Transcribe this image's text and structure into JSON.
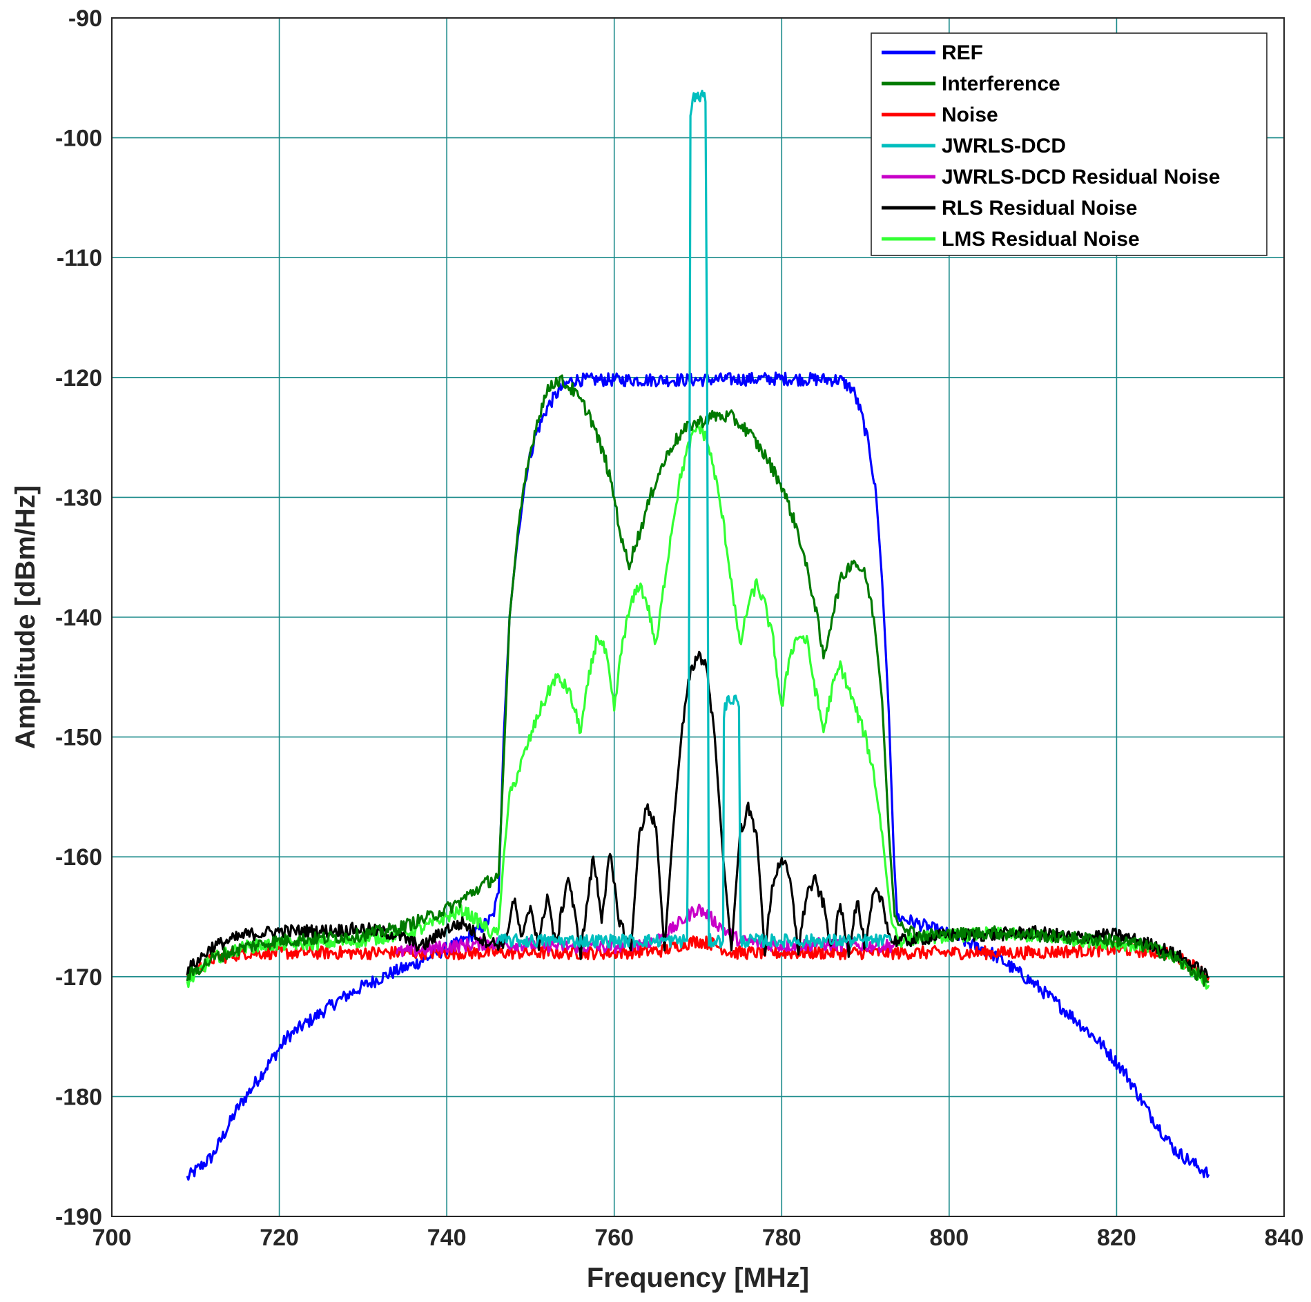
{
  "chart_data": {
    "type": "line",
    "title": "",
    "xlabel": "Frequency [MHz]",
    "ylabel": "Amplitude [dBm/Hz]",
    "xlim": [
      700,
      840
    ],
    "ylim": [
      -190,
      -90
    ],
    "xticks": [
      700,
      720,
      740,
      760,
      780,
      800,
      820,
      840
    ],
    "yticks": [
      -90,
      -100,
      -110,
      -120,
      -130,
      -140,
      -150,
      -160,
      -170,
      -180,
      -190
    ],
    "grid": true,
    "legend_position": "top-right",
    "series": [
      {
        "name": "REF",
        "color": "#0000ff",
        "points": [
          [
            709,
            -186.8
          ],
          [
            712,
            -185
          ],
          [
            715,
            -181
          ],
          [
            718,
            -178
          ],
          [
            721,
            -175
          ],
          [
            724,
            -173.5
          ],
          [
            727,
            -172
          ],
          [
            730,
            -170.8
          ],
          [
            733,
            -169.8
          ],
          [
            736,
            -169
          ],
          [
            739,
            -168
          ],
          [
            742,
            -167
          ],
          [
            744,
            -166
          ],
          [
            745.5,
            -165
          ],
          [
            746.2,
            -163
          ],
          [
            746.8,
            -150
          ],
          [
            747.5,
            -140
          ],
          [
            748.5,
            -133
          ],
          [
            749.5,
            -128
          ],
          [
            750.5,
            -125
          ],
          [
            752,
            -122.5
          ],
          [
            753.5,
            -121
          ],
          [
            755,
            -120.2
          ],
          [
            760,
            -120.2
          ],
          [
            770,
            -120.2
          ],
          [
            780,
            -120.1
          ],
          [
            787,
            -120.2
          ],
          [
            788.5,
            -121
          ],
          [
            789.5,
            -123
          ],
          [
            790.5,
            -126
          ],
          [
            791.3,
            -130
          ],
          [
            792,
            -137
          ],
          [
            792.8,
            -148
          ],
          [
            793.4,
            -160
          ],
          [
            793.8,
            -165
          ],
          [
            796,
            -165.5
          ],
          [
            800,
            -166.5
          ],
          [
            805,
            -168
          ],
          [
            810,
            -170.5
          ],
          [
            815,
            -173.5
          ],
          [
            818,
            -175.5
          ],
          [
            821,
            -178
          ],
          [
            824,
            -181.5
          ],
          [
            827,
            -184.5
          ],
          [
            830,
            -186
          ],
          [
            831,
            -186.5
          ]
        ]
      },
      {
        "name": "Interference",
        "color": "#007a00",
        "points": [
          [
            709,
            -170
          ],
          [
            712,
            -168.5
          ],
          [
            716,
            -167.5
          ],
          [
            720,
            -167
          ],
          [
            725,
            -166.8
          ],
          [
            730,
            -166.5
          ],
          [
            734,
            -166
          ],
          [
            738,
            -165
          ],
          [
            741,
            -164
          ],
          [
            744,
            -162.5
          ],
          [
            746.2,
            -161.5
          ],
          [
            746.8,
            -152
          ],
          [
            747.5,
            -140
          ],
          [
            748.5,
            -133
          ],
          [
            749.5,
            -128
          ],
          [
            750.5,
            -124.5
          ],
          [
            751.5,
            -122
          ],
          [
            752.5,
            -120.5
          ],
          [
            753.5,
            -120.2
          ],
          [
            755,
            -121
          ],
          [
            757,
            -123
          ],
          [
            759,
            -127
          ],
          [
            760,
            -130
          ],
          [
            761,
            -134
          ],
          [
            761.8,
            -135.5
          ],
          [
            763,
            -133
          ],
          [
            765,
            -128.5
          ],
          [
            767,
            -125.5
          ],
          [
            769,
            -124
          ],
          [
            771,
            -123.5
          ],
          [
            772,
            -123.2
          ],
          [
            774,
            -123.3
          ],
          [
            776,
            -124.5
          ],
          [
            778,
            -126.5
          ],
          [
            780,
            -129
          ],
          [
            782,
            -133
          ],
          [
            784,
            -139
          ],
          [
            785,
            -143.5
          ],
          [
            786,
            -140
          ],
          [
            787,
            -137
          ],
          [
            788.5,
            -135.2
          ],
          [
            790,
            -136.5
          ],
          [
            791,
            -140
          ],
          [
            792,
            -147
          ],
          [
            792.8,
            -158
          ],
          [
            793.5,
            -165
          ],
          [
            796,
            -166.5
          ],
          [
            800,
            -166.5
          ],
          [
            805,
            -166.3
          ],
          [
            810,
            -166.5
          ],
          [
            815,
            -166.8
          ],
          [
            820,
            -167
          ],
          [
            824,
            -167.5
          ],
          [
            827,
            -168.5
          ],
          [
            830,
            -170
          ],
          [
            831,
            -170.5
          ]
        ]
      },
      {
        "name": "Noise",
        "color": "#ff0000",
        "points": [
          [
            709,
            -170
          ],
          [
            712,
            -168.5
          ],
          [
            716,
            -168
          ],
          [
            720,
            -168
          ],
          [
            730,
            -168
          ],
          [
            740,
            -168
          ],
          [
            750,
            -168
          ],
          [
            760,
            -168
          ],
          [
            766,
            -167.8
          ],
          [
            768,
            -167.3
          ],
          [
            770,
            -167
          ],
          [
            772,
            -167.3
          ],
          [
            774,
            -168
          ],
          [
            780,
            -168
          ],
          [
            790,
            -168
          ],
          [
            800,
            -168
          ],
          [
            810,
            -168
          ],
          [
            820,
            -167.7
          ],
          [
            826,
            -168
          ],
          [
            829,
            -169
          ],
          [
            831,
            -170
          ]
        ]
      },
      {
        "name": "JWRLS-DCD",
        "color": "#00bebe",
        "points": [
          [
            746,
            -167
          ],
          [
            768.7,
            -167
          ],
          [
            768.9,
            -150
          ],
          [
            769.1,
            -98
          ],
          [
            769.5,
            -96.5
          ],
          [
            770,
            -96.7
          ],
          [
            770.5,
            -96.4
          ],
          [
            770.9,
            -97
          ],
          [
            771.1,
            -120
          ],
          [
            771.3,
            -167
          ],
          [
            773,
            -167
          ],
          [
            773.1,
            -148
          ],
          [
            773.5,
            -147
          ],
          [
            774.5,
            -146.8
          ],
          [
            774.9,
            -147.5
          ],
          [
            775.1,
            -167
          ],
          [
            793,
            -167
          ]
        ]
      },
      {
        "name": "JWRLS-DCD Residual Noise",
        "color": "#c800c8",
        "points": [
          [
            734,
            -168
          ],
          [
            740,
            -167.5
          ],
          [
            745,
            -167.2
          ],
          [
            750,
            -167.3
          ],
          [
            755,
            -167.5
          ],
          [
            760,
            -167.5
          ],
          [
            765,
            -167
          ],
          [
            767,
            -166
          ],
          [
            769,
            -164.8
          ],
          [
            770,
            -164.3
          ],
          [
            771,
            -164.8
          ],
          [
            773,
            -166
          ],
          [
            775,
            -167
          ],
          [
            780,
            -167.4
          ],
          [
            785,
            -167.3
          ],
          [
            790,
            -167.4
          ],
          [
            794,
            -167.4
          ]
        ]
      },
      {
        "name": "RLS Residual Noise",
        "color": "#000000",
        "points": [
          [
            709,
            -169.5
          ],
          [
            712,
            -167.5
          ],
          [
            716,
            -166.5
          ],
          [
            720,
            -166.2
          ],
          [
            725,
            -166.2
          ],
          [
            730,
            -166
          ],
          [
            734,
            -166.5
          ],
          [
            737,
            -167.5
          ],
          [
            740,
            -166
          ],
          [
            742,
            -165.5
          ],
          [
            744,
            -166.8
          ],
          [
            746,
            -167.3
          ],
          [
            747,
            -167
          ],
          [
            748,
            -163.5
          ],
          [
            749,
            -167
          ],
          [
            750,
            -164
          ],
          [
            751,
            -167.5
          ],
          [
            752,
            -163
          ],
          [
            753,
            -167.5
          ],
          [
            754.5,
            -161.5
          ],
          [
            756,
            -168
          ],
          [
            757.5,
            -160
          ],
          [
            758.5,
            -165
          ],
          [
            759.5,
            -159.8
          ],
          [
            760.5,
            -165
          ],
          [
            762,
            -167.8
          ],
          [
            763,
            -158
          ],
          [
            764,
            -155.8
          ],
          [
            765,
            -157.5
          ],
          [
            766,
            -167.8
          ],
          [
            767,
            -158
          ],
          [
            768,
            -150
          ],
          [
            769,
            -145
          ],
          [
            770,
            -143
          ],
          [
            771,
            -144
          ],
          [
            772,
            -150
          ],
          [
            773,
            -160
          ],
          [
            774,
            -167.8
          ],
          [
            775,
            -158
          ],
          [
            776,
            -156
          ],
          [
            777,
            -158
          ],
          [
            778,
            -167.8
          ],
          [
            779,
            -162
          ],
          [
            780,
            -160
          ],
          [
            781,
            -162
          ],
          [
            782,
            -167.8
          ],
          [
            783,
            -163
          ],
          [
            784,
            -162
          ],
          [
            785,
            -164
          ],
          [
            786,
            -167.8
          ],
          [
            787,
            -164
          ],
          [
            788,
            -167.8
          ],
          [
            789,
            -163.5
          ],
          [
            790,
            -167.8
          ],
          [
            791,
            -163
          ],
          [
            792,
            -163.5
          ],
          [
            793,
            -167
          ],
          [
            795,
            -167
          ],
          [
            800,
            -166.5
          ],
          [
            805,
            -166.5
          ],
          [
            810,
            -166.3
          ],
          [
            815,
            -166.7
          ],
          [
            820,
            -166.5
          ],
          [
            825,
            -167.5
          ],
          [
            828,
            -168.5
          ],
          [
            831,
            -170
          ]
        ]
      },
      {
        "name": "LMS Residual Noise",
        "color": "#33ff33",
        "points": [
          [
            709,
            -170.5
          ],
          [
            712,
            -168.5
          ],
          [
            716,
            -167.5
          ],
          [
            720,
            -167.3
          ],
          [
            725,
            -167.2
          ],
          [
            730,
            -167
          ],
          [
            734,
            -166.5
          ],
          [
            737,
            -166
          ],
          [
            740,
            -165
          ],
          [
            742,
            -164.5
          ],
          [
            744,
            -165.5
          ],
          [
            745.5,
            -166.5
          ],
          [
            746.2,
            -166
          ],
          [
            746.8,
            -160
          ],
          [
            747.5,
            -155
          ],
          [
            749,
            -152
          ],
          [
            751,
            -148
          ],
          [
            753,
            -145
          ],
          [
            754.5,
            -146
          ],
          [
            756,
            -149.5
          ],
          [
            757,
            -145
          ],
          [
            758,
            -141.5
          ],
          [
            759,
            -143
          ],
          [
            760,
            -147.8
          ],
          [
            761,
            -142
          ],
          [
            762,
            -139
          ],
          [
            763,
            -137.2
          ],
          [
            764,
            -139
          ],
          [
            765,
            -142.5
          ],
          [
            766,
            -137
          ],
          [
            767,
            -132
          ],
          [
            768,
            -128
          ],
          [
            769,
            -125.5
          ],
          [
            770,
            -124
          ],
          [
            771,
            -125
          ],
          [
            772,
            -128
          ],
          [
            773,
            -132
          ],
          [
            774,
            -137
          ],
          [
            775,
            -142.5
          ],
          [
            776,
            -139
          ],
          [
            777,
            -137.2
          ],
          [
            778,
            -139
          ],
          [
            779,
            -142
          ],
          [
            780,
            -147.8
          ],
          [
            781,
            -143
          ],
          [
            782,
            -141.5
          ],
          [
            783,
            -142
          ],
          [
            784,
            -146
          ],
          [
            785,
            -149.5
          ],
          [
            786,
            -146
          ],
          [
            787,
            -144
          ],
          [
            788,
            -146
          ],
          [
            789,
            -148
          ],
          [
            790,
            -150
          ],
          [
            791,
            -153
          ],
          [
            792,
            -158
          ],
          [
            793,
            -165
          ],
          [
            794,
            -167
          ],
          [
            796,
            -166.8
          ],
          [
            800,
            -166.6
          ],
          [
            805,
            -166.4
          ],
          [
            810,
            -166.6
          ],
          [
            815,
            -166.9
          ],
          [
            820,
            -167.2
          ],
          [
            824,
            -167.5
          ],
          [
            827,
            -168.5
          ],
          [
            830,
            -170
          ],
          [
            831,
            -170.7
          ]
        ]
      }
    ]
  }
}
